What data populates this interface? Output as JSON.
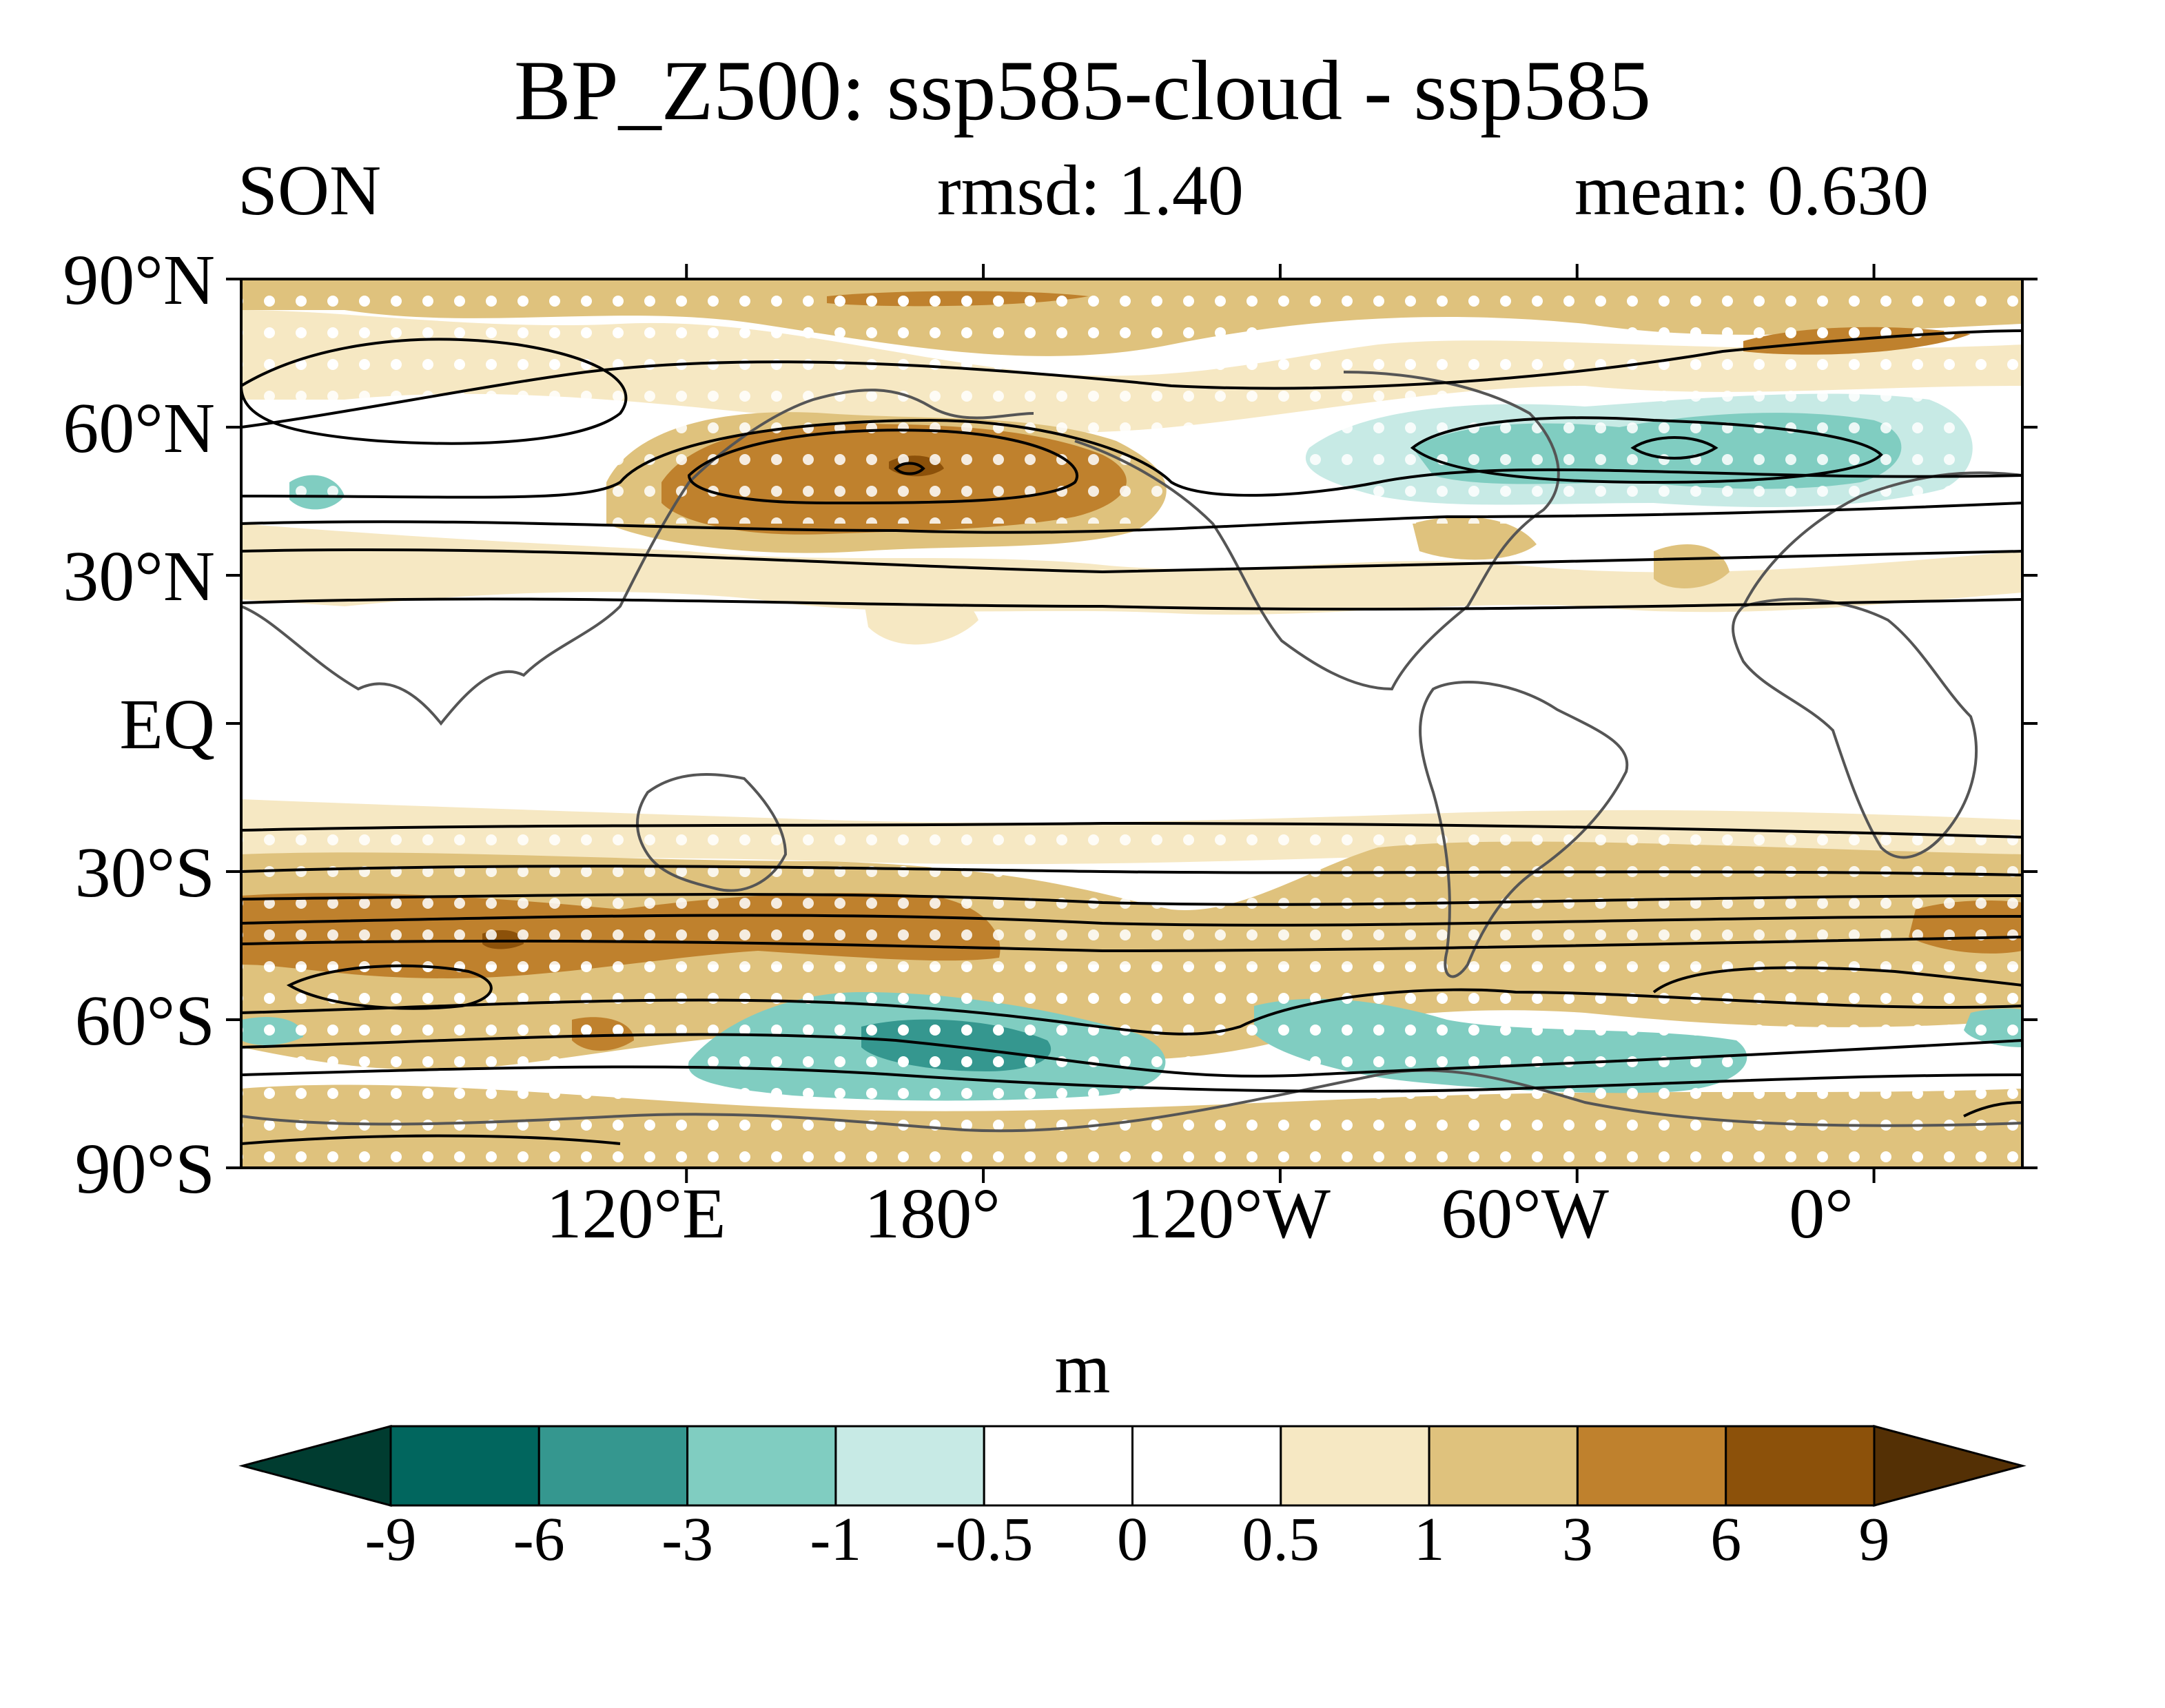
{
  "title": "BP_Z500: ssp585-cloud - ssp585",
  "left_string": "SON",
  "center_string": "rmsd: 1.40",
  "right_string": "mean: 0.630",
  "map": {
    "projection": "cylindrical equidistant",
    "center_longitude": "150°W",
    "lat_range": [
      -90,
      90
    ],
    "coastlines_color": "#555555",
    "contour_color": "#000000",
    "stipple_color": "#ffffff",
    "lat_ticks": [
      {
        "value": 90,
        "label": "90°N"
      },
      {
        "value": 60,
        "label": "60°N"
      },
      {
        "value": 30,
        "label": "30°N"
      },
      {
        "value": 0,
        "label": "EQ"
      },
      {
        "value": -30,
        "label": "30°S"
      },
      {
        "value": -60,
        "label": "60°S"
      },
      {
        "value": -90,
        "label": "90°S"
      }
    ],
    "lon_ticks": [
      {
        "value": 120,
        "label": "120°E"
      },
      {
        "value": 180,
        "label": "180°"
      },
      {
        "value": -120,
        "label": "120°W"
      },
      {
        "value": -60,
        "label": "60°W"
      },
      {
        "value": 0,
        "label": "0°"
      }
    ],
    "positive_anomaly_regions": [
      {
        "name": "north-pacific-max",
        "lon": 175,
        "lat": 52,
        "level": 3
      },
      {
        "name": "southern-ocean-band-indian",
        "lon": 75,
        "lat": -45,
        "level": 3
      },
      {
        "name": "southern-ocean-band-tasman",
        "lon": 165,
        "lat": -43,
        "level": 3
      },
      {
        "name": "south-atlantic-band",
        "lon": -15,
        "lat": -48,
        "level": 1
      },
      {
        "name": "arctic-band",
        "lon": 180,
        "lat": 82,
        "level": 1
      }
    ],
    "negative_anomaly_regions": [
      {
        "name": "north-atlantic-min",
        "lon": -40,
        "lat": 55,
        "level": -1
      },
      {
        "name": "amundsen-sea-min",
        "lon": -175,
        "lat": -63,
        "level": -3
      },
      {
        "name": "weddell-sea-min",
        "lon": -50,
        "lat": -65,
        "level": -1
      }
    ]
  },
  "colorbar": {
    "units": "m",
    "labels": [
      "-9",
      "-6",
      "-3",
      "-1",
      "-0.5",
      "0",
      "0.5",
      "1",
      "3",
      "6",
      "9"
    ],
    "colors": [
      "#003c30",
      "#01665e",
      "#35978f",
      "#80cdc1",
      "#c7eae5",
      "#ffffff",
      "#ffffff",
      "#f6e8c3",
      "#dfc27d",
      "#bf812d",
      "#8c510a",
      "#543005"
    ]
  }
}
